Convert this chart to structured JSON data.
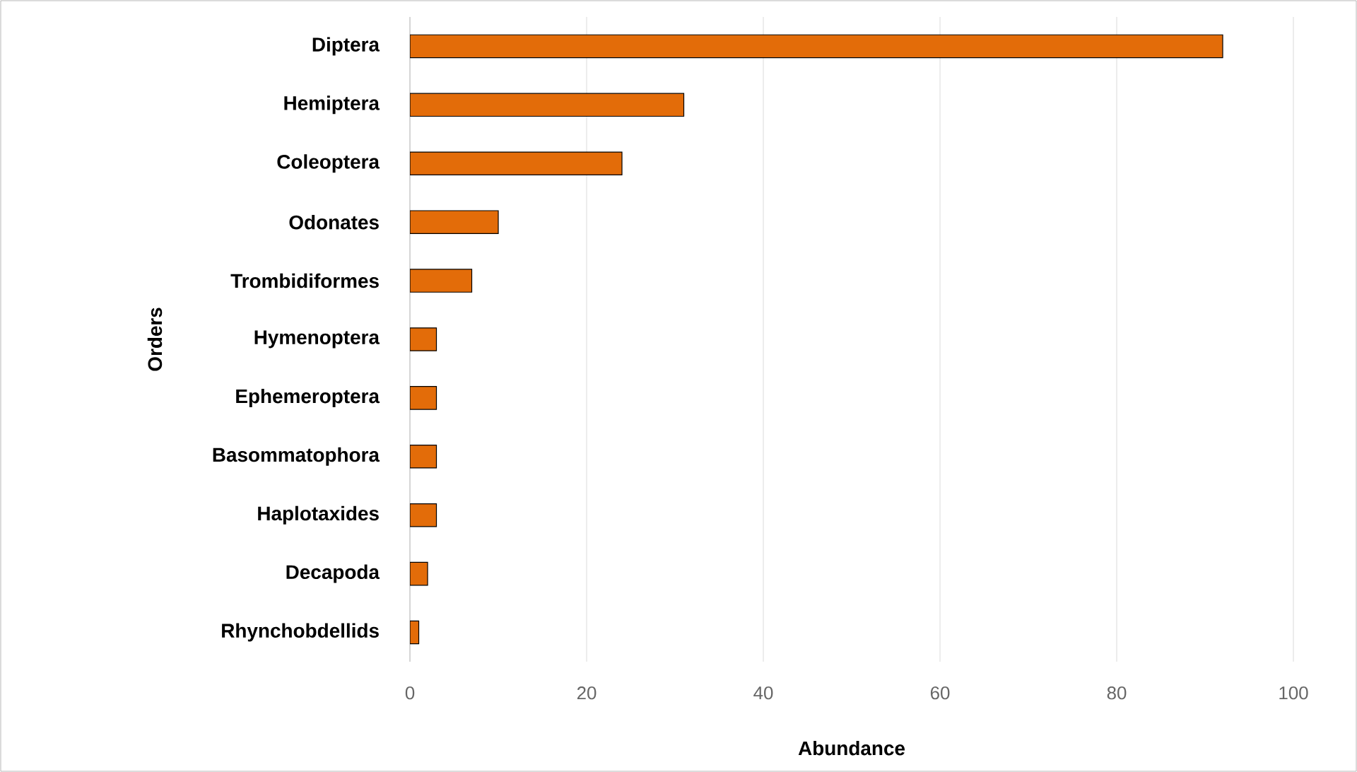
{
  "chart_data": {
    "type": "bar",
    "orientation": "horizontal",
    "xlabel": "Abundance",
    "ylabel": "Orders",
    "categories": [
      "Diptera",
      "Hemiptera",
      "Coleoptera",
      "Odonates",
      "Trombidiformes",
      "Hymenoptera",
      "Ephemeroptera",
      "Basommatophora",
      "Haplotaxides",
      "Decapoda",
      "Rhynchobdellids"
    ],
    "values": [
      92,
      31,
      24,
      10,
      7,
      3,
      3,
      3,
      3,
      2,
      1
    ],
    "color": "#e36c09",
    "xlim": [
      0,
      100
    ],
    "xticks": [
      0,
      20,
      40,
      60,
      80,
      100
    ],
    "grid": "x"
  }
}
